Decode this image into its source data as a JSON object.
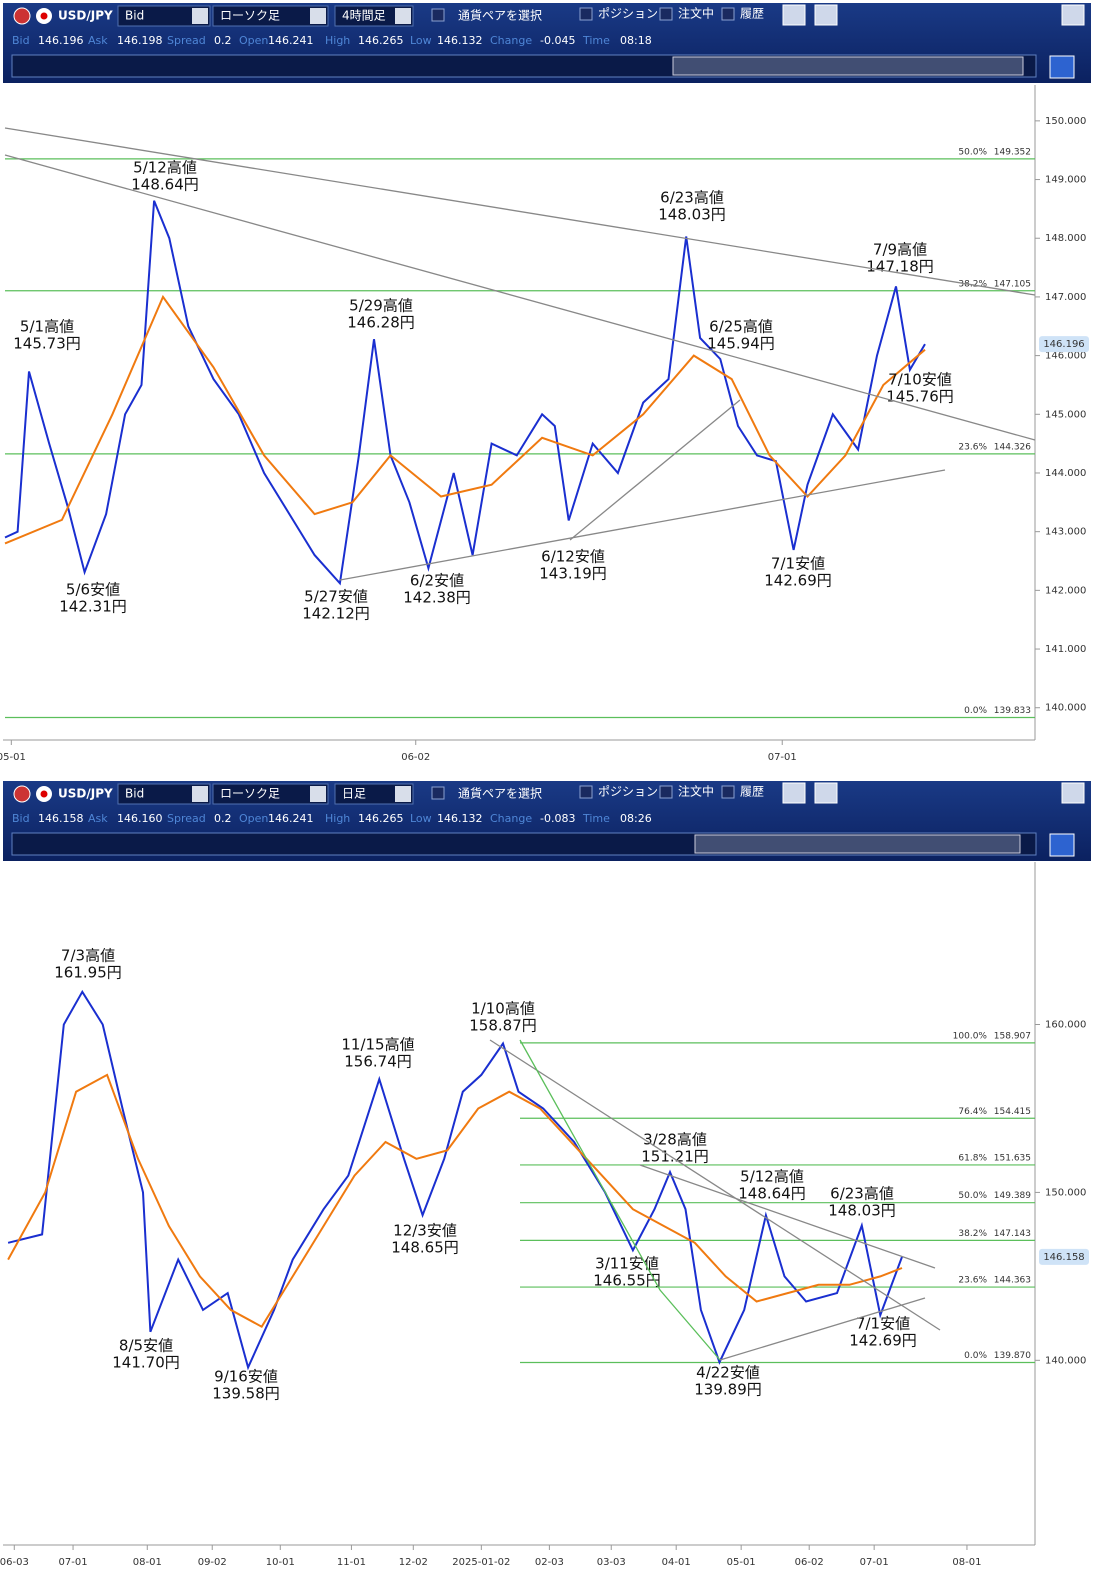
{
  "panels": [
    {
      "toolbar": {
        "pair": "USD/JPY",
        "price_type": "Bid",
        "chart_type": "ローソク足",
        "timeframe": "4時間足",
        "select_pair": "通貨ペアを選択",
        "checkboxes": [
          "ポジション",
          "注文中",
          "履歴"
        ]
      },
      "quote": [
        {
          "label": "Bid",
          "value": "146.196"
        },
        {
          "label": "Ask",
          "value": "146.198"
        },
        {
          "label": "Spread",
          "value": "0.2"
        },
        {
          "label": "Open",
          "value": "146.241"
        },
        {
          "label": "High",
          "value": "146.265"
        },
        {
          "label": "Low",
          "value": "146.132"
        },
        {
          "label": "Change",
          "value": "-0.045"
        },
        {
          "label": "Time",
          "value": "08:18"
        }
      ],
      "chart": {
        "type": "line",
        "xlim": [
          -0.5,
          81
        ],
        "ylim": [
          139.45,
          150.56
        ],
        "xticks": [
          {
            "value": 0,
            "label": "05-01"
          },
          {
            "value": 32,
            "label": "06-02"
          },
          {
            "value": 61,
            "label": "07-01"
          }
        ],
        "yticks": [
          {
            "value": 140,
            "label": "140.000"
          },
          {
            "value": 141,
            "label": "141.000"
          },
          {
            "value": 142,
            "label": "142.000"
          },
          {
            "value": 143,
            "label": "143.000"
          },
          {
            "value": 144,
            "label": "144.000"
          },
          {
            "value": 145,
            "label": "145.000"
          },
          {
            "value": 146,
            "label": "146.000"
          },
          {
            "value": 147,
            "label": "147.000"
          },
          {
            "value": 148,
            "label": "148.000"
          },
          {
            "value": 149,
            "label": "149.000"
          },
          {
            "value": 150,
            "label": "150.000"
          }
        ],
        "series": [
          {
            "color": "#1a2fd0",
            "x": [
              -0.5,
              0.5,
              1.4,
              3,
              4.5,
              5.8,
              7.5,
              9,
              10.3,
              11.3,
              12.5,
              14,
              16,
              18,
              20,
              22,
              24,
              26,
              27.5,
              28.7,
              30,
              31.5,
              33,
              35,
              36.5,
              38,
              40,
              42,
              43,
              44.1,
              46,
              48,
              50,
              52,
              53.4,
              54.5,
              56.1,
              57.5,
              59,
              60.5,
              61.9,
              63,
              65,
              67,
              68.5,
              70,
              71.1,
              72.3
            ],
            "values": [
              142.9,
              143.0,
              145.73,
              144.5,
              143.4,
              142.31,
              143.3,
              145.0,
              145.5,
              148.64,
              148.0,
              146.5,
              145.6,
              145.0,
              144.0,
              143.3,
              142.6,
              142.12,
              144.3,
              146.28,
              144.3,
              143.5,
              142.38,
              144.0,
              142.6,
              144.5,
              144.3,
              145.0,
              144.8,
              143.19,
              144.5,
              144.0,
              145.2,
              145.6,
              148.03,
              146.3,
              145.94,
              144.8,
              144.3,
              144.2,
              142.69,
              143.8,
              145.0,
              144.4,
              146.0,
              147.18,
              145.76,
              146.196
            ]
          },
          {
            "color": "#f07a10",
            "x": [
              -0.5,
              4,
              8,
              12,
              16,
              20,
              24,
              27,
              30,
              34,
              38,
              42,
              46,
              50,
              54,
              57,
              60,
              63,
              66,
              69,
              72.3
            ],
            "values": [
              142.8,
              143.2,
              145.0,
              147.0,
              145.8,
              144.3,
              143.3,
              143.5,
              144.3,
              143.6,
              143.8,
              144.6,
              144.3,
              145.0,
              146.0,
              145.6,
              144.3,
              143.6,
              144.3,
              145.5,
              146.1
            ]
          }
        ],
        "levels": [
          {
            "ratio": "50.0%",
            "price": 149.352
          },
          {
            "ratio": "38.2%",
            "price": 147.105
          },
          {
            "ratio": "23.6%",
            "price": 144.326
          },
          {
            "ratio": "0.0%",
            "price": 139.833
          }
        ],
        "current_price": 146.196,
        "annotations": [
          {
            "title": "5/1高値",
            "price": "145.73円"
          },
          {
            "title": "5/6安値",
            "price": "142.31円"
          },
          {
            "title": "5/12高値",
            "price": "148.64円"
          },
          {
            "title": "5/27安値",
            "price": "142.12円"
          },
          {
            "title": "5/29高値",
            "price": "146.28円"
          },
          {
            "title": "6/2安値",
            "price": "142.38円"
          },
          {
            "title": "6/12安値",
            "price": "143.19円"
          },
          {
            "title": "6/23高値",
            "price": "148.03円"
          },
          {
            "title": "6/25高値",
            "price": "145.94円"
          },
          {
            "title": "7/1安値",
            "price": "142.69円"
          },
          {
            "title": "7/9高値",
            "price": "147.18円"
          },
          {
            "title": "7/10安値",
            "price": "145.76円"
          }
        ]
      }
    },
    {
      "toolbar": {
        "pair": "USD/JPY",
        "price_type": "Bid",
        "chart_type": "ローソク足",
        "timeframe": "日足",
        "select_pair": "通貨ペアを選択",
        "checkboxes": [
          "ポジション",
          "注文中",
          "履歴"
        ]
      },
      "quote": [
        {
          "label": "Bid",
          "value": "146.158"
        },
        {
          "label": "Ask",
          "value": "146.160"
        },
        {
          "label": "Spread",
          "value": "0.2"
        },
        {
          "label": "Open",
          "value": "146.241"
        },
        {
          "label": "High",
          "value": "146.265"
        },
        {
          "label": "Low",
          "value": "146.132"
        },
        {
          "label": "Change",
          "value": "-0.083"
        },
        {
          "label": "Time",
          "value": "08:26"
        }
      ],
      "chart": {
        "type": "line",
        "xlim": [
          -3,
          330
        ],
        "ylim": [
          129,
          169.5
        ],
        "xticks": [
          {
            "value": 0,
            "label": "06-03"
          },
          {
            "value": 19,
            "label": "07-01"
          },
          {
            "value": 43,
            "label": "08-01"
          },
          {
            "value": 64,
            "label": "09-02"
          },
          {
            "value": 86,
            "label": "10-01"
          },
          {
            "value": 109,
            "label": "11-01"
          },
          {
            "value": 129,
            "label": "12-02"
          },
          {
            "value": 151,
            "label": "2025-01-02"
          },
          {
            "value": 173,
            "label": "02-03"
          },
          {
            "value": 193,
            "label": "03-03"
          },
          {
            "value": 214,
            "label": "04-01"
          },
          {
            "value": 235,
            "label": "05-01"
          },
          {
            "value": 257,
            "label": "06-02"
          },
          {
            "value": 278,
            "label": "07-01"
          },
          {
            "value": 308,
            "label": "08-01"
          }
        ],
        "yticks": [
          {
            "value": 140,
            "label": "140.000"
          },
          {
            "value": 150,
            "label": "150.000"
          },
          {
            "value": 160,
            "label": "160.000"
          }
        ],
        "series": [
          {
            "color": "#1a2fd0",
            "x": [
              -2,
              9,
              16,
              22,
              28.6,
              35,
              41.6,
              44,
              53,
              61,
              69,
              75.6,
              84,
              90,
              100,
              108,
              118,
              126,
              132,
              139,
              145,
              151,
              158,
              163,
              171,
              181,
              191,
              200,
              207,
              212,
              217,
              222,
              228,
              236,
              243,
              249,
              256,
              266,
              274,
              280,
              287
            ],
            "values": [
              147.0,
              147.5,
              160.0,
              161.95,
              160.0,
              155.0,
              150.0,
              141.7,
              146.0,
              143.0,
              144.0,
              139.58,
              143.0,
              146.0,
              149.0,
              151.0,
              156.74,
              152.0,
              148.65,
              152.0,
              156.0,
              157.0,
              158.87,
              156.0,
              155.0,
              153.0,
              150.0,
              146.55,
              149.0,
              151.21,
              149.0,
              143.0,
              139.89,
              143.0,
              148.64,
              145.0,
              143.5,
              144.0,
              148.03,
              142.69,
              146.158
            ]
          },
          {
            "color": "#f07a10",
            "x": [
              -2,
              10,
              20,
              30,
              40,
              50,
              60,
              70,
              80,
              90,
              100,
              110,
              120,
              130,
              140,
              150,
              160,
              170,
              180,
              190,
              200,
              210,
              220,
              230,
              240,
              250,
              260,
              270,
              280,
              287
            ],
            "values": [
              146.0,
              150.0,
              156.0,
              157.0,
              152.0,
              148.0,
              145.0,
              143.0,
              142.0,
              145.0,
              148.0,
              151.0,
              153.0,
              152.0,
              152.5,
              155.0,
              156.0,
              155.0,
              153.0,
              151.0,
              149.0,
              148.0,
              147.0,
              145.0,
              143.5,
              144.0,
              144.5,
              144.5,
              145.0,
              145.5
            ]
          }
        ],
        "levels": [
          {
            "ratio": "100.0%",
            "price": 158.907
          },
          {
            "ratio": "76.4%",
            "price": 154.415
          },
          {
            "ratio": "61.8%",
            "price": 151.635
          },
          {
            "ratio": "50.0%",
            "price": 149.389
          },
          {
            "ratio": "38.2%",
            "price": 147.143
          },
          {
            "ratio": "23.6%",
            "price": 144.363
          },
          {
            "ratio": "0.0%",
            "price": {
              "value": 139.87,
              "label": "139.870"
            }
          }
        ],
        "current_price": 146.158,
        "annotations": [
          {
            "title": "7/3高値",
            "price": "161.95円"
          },
          {
            "title": "1/10高値",
            "price": "158.87円"
          },
          {
            "title": "11/15高値",
            "price": "156.74円"
          },
          {
            "title": "3/28高値",
            "price": "151.21円"
          },
          {
            "title": "5/12高値",
            "price": "148.64円"
          },
          {
            "title": "6/23高値",
            "price": "148.03円"
          },
          {
            "title": "12/3安値",
            "price": "148.65円"
          },
          {
            "title": "3/11安値",
            "price": "146.55円"
          },
          {
            "title": "7/1安値",
            "price": "142.69円"
          },
          {
            "title": "8/5安値",
            "price": "141.70円"
          },
          {
            "title": "9/16安値",
            "price": "139.58円"
          },
          {
            "title": "4/22安値",
            "price": "139.89円"
          }
        ]
      }
    }
  ]
}
